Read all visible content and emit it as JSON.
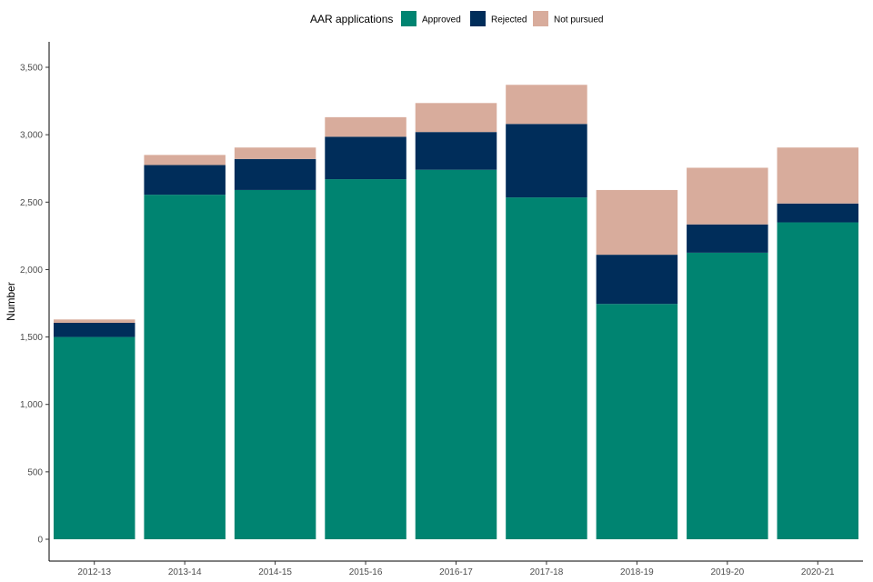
{
  "chart_data": {
    "type": "bar",
    "stacked": true,
    "title": "",
    "xlabel": "",
    "ylabel": "Number",
    "ylim": [
      0,
      3500
    ],
    "y_ticks": [
      0,
      500,
      1000,
      1500,
      2000,
      2500,
      3000,
      3500
    ],
    "y_tick_labels": [
      "0",
      "500",
      "1,000",
      "1,500",
      "2,000",
      "2,500",
      "3,000",
      "3,500"
    ],
    "categories": [
      "2012-13",
      "2013-14",
      "2014-15",
      "2015-16",
      "2016-17",
      "2017-18",
      "2018-19",
      "2019-20",
      "2020-21"
    ],
    "legend_title": "AAR applications",
    "legend_position": "top",
    "grid": false,
    "series": [
      {
        "name": "Approved",
        "color": "#008471",
        "values": [
          1500,
          2555,
          2590,
          2670,
          2740,
          2535,
          1745,
          2125,
          2350
        ]
      },
      {
        "name": "Rejected",
        "color": "#002d5a",
        "values": [
          105,
          220,
          230,
          315,
          280,
          545,
          365,
          210,
          140
        ]
      },
      {
        "name": "Not pursued",
        "color": "#d8ac9c",
        "values": [
          25,
          75,
          85,
          145,
          215,
          290,
          480,
          420,
          415
        ]
      }
    ]
  }
}
